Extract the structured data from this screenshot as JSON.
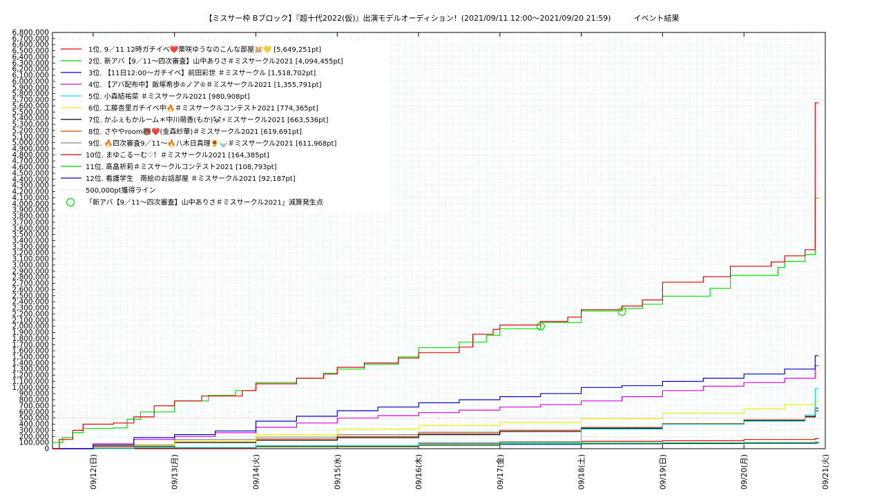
{
  "chart_data": {
    "type": "line",
    "title": "【ミスサー枠 Bブロック】『超十代2022(仮)』出演モデルオーディション！(2021/09/11 12:00～2021/09/20 21:59)　　　イベント結果",
    "xlabel": "",
    "ylabel": "",
    "xlim": [
      "2021-09-11 12:00",
      "2021-09-21 00:00"
    ],
    "ylim": [
      0,
      6800000
    ],
    "ytick_step": 100000,
    "x_ticks": [
      "09/12(日)",
      "09/13(月)",
      "09/14(火)",
      "09/15(水)",
      "09/16(木)",
      "09/17(金)",
      "09/18(土)",
      "09/19(日)",
      "09/20(月)",
      "09/21(火)"
    ],
    "x_tick_dates": [
      "2021-09-12",
      "2021-09-13",
      "2021-09-14",
      "2021-09-15",
      "2021-09-16",
      "2021-09-17",
      "2021-09-18",
      "2021-09-19",
      "2021-09-20",
      "2021-09-21"
    ],
    "grid": true,
    "legend_position": "top-left",
    "series": [
      {
        "name": "1位. 9／11 12時ガチイベ❤️栗咲ゆうなのこんな部屋🐹💛 [5,649,251pt]",
        "color": "#e00000",
        "points": [
          [
            "2021-09-11 12:00",
            0
          ],
          [
            "2021-09-11 14:00",
            150000
          ],
          [
            "2021-09-11 18:00",
            300000
          ],
          [
            "2021-09-11 21:00",
            400000
          ],
          [
            "2021-09-12 06:00",
            420000
          ],
          [
            "2021-09-12 12:00",
            520000
          ],
          [
            "2021-09-12 18:00",
            700000
          ],
          [
            "2021-09-13 00:00",
            780000
          ],
          [
            "2021-09-13 08:00",
            860000
          ],
          [
            "2021-09-13 20:00",
            950000
          ],
          [
            "2021-09-14 00:00",
            1060000
          ],
          [
            "2021-09-14 12:00",
            1150000
          ],
          [
            "2021-09-14 20:00",
            1220000
          ],
          [
            "2021-09-15 00:00",
            1330000
          ],
          [
            "2021-09-15 08:00",
            1400000
          ],
          [
            "2021-09-15 18:00",
            1480000
          ],
          [
            "2021-09-16 00:00",
            1570000
          ],
          [
            "2021-09-16 12:00",
            1660000
          ],
          [
            "2021-09-16 16:00",
            1870000
          ],
          [
            "2021-09-16 22:00",
            1950000
          ],
          [
            "2021-09-17 00:00",
            2020000
          ],
          [
            "2021-09-17 12:00",
            2080000
          ],
          [
            "2021-09-17 20:00",
            2150000
          ],
          [
            "2021-09-18 00:00",
            2270000
          ],
          [
            "2021-09-18 12:00",
            2330000
          ],
          [
            "2021-09-18 18:00",
            2430000
          ],
          [
            "2021-09-19 00:00",
            2720000
          ],
          [
            "2021-09-19 12:00",
            2810000
          ],
          [
            "2021-09-19 20:00",
            2980000
          ],
          [
            "2021-09-20 08:00",
            3050000
          ],
          [
            "2021-09-20 12:00",
            3150000
          ],
          [
            "2021-09-20 18:00",
            3250000
          ],
          [
            "2021-09-20 21:00",
            5649251
          ],
          [
            "2021-09-20 21:59",
            5649251
          ]
        ]
      },
      {
        "name": "2位. 新アバ【9／11～四次審査】山中ありさ＃ミスサークル2021 [4,094,455pt]",
        "color": "#00dd00",
        "points": [
          [
            "2021-09-11 12:00",
            100000
          ],
          [
            "2021-09-11 15:00",
            180000
          ],
          [
            "2021-09-11 18:00",
            260000
          ],
          [
            "2021-09-11 21:00",
            330000
          ],
          [
            "2021-09-12 06:00",
            340000
          ],
          [
            "2021-09-12 10:00",
            480000
          ],
          [
            "2021-09-12 14:00",
            600000
          ],
          [
            "2021-09-13 00:00",
            780000
          ],
          [
            "2021-09-13 10:00",
            870000
          ],
          [
            "2021-09-13 18:00",
            950000
          ],
          [
            "2021-09-14 00:00",
            1080000
          ],
          [
            "2021-09-14 12:00",
            1150000
          ],
          [
            "2021-09-14 20:00",
            1230000
          ],
          [
            "2021-09-15 00:00",
            1300000
          ],
          [
            "2021-09-15 08:00",
            1380000
          ],
          [
            "2021-09-15 18:00",
            1500000
          ],
          [
            "2021-09-16 00:00",
            1650000
          ],
          [
            "2021-09-16 12:00",
            1740000
          ],
          [
            "2021-09-16 20:00",
            1850000
          ],
          [
            "2021-09-17 00:00",
            1960000
          ],
          [
            "2021-09-17 12:00",
            2060000
          ],
          [
            "2021-09-18 00:00",
            2250000
          ],
          [
            "2021-09-18 12:00",
            2290000
          ],
          [
            "2021-09-18 18:00",
            2360000
          ],
          [
            "2021-09-19 00:00",
            2490000
          ],
          [
            "2021-09-19 14:00",
            2620000
          ],
          [
            "2021-09-19 20:00",
            2830000
          ],
          [
            "2021-09-20 10:00",
            2960000
          ],
          [
            "2021-09-20 12:00",
            3060000
          ],
          [
            "2021-09-20 18:00",
            3170000
          ],
          [
            "2021-09-20 21:00",
            4094455
          ],
          [
            "2021-09-20 21:59",
            4094455
          ]
        ]
      },
      {
        "name": "3位. 【11日12:00～ガチイベ】前田彩世 ＃ミスサークル [1,518,702pt]",
        "color": "#0000cc",
        "points": [
          [
            "2021-09-11 12:00",
            0
          ],
          [
            "2021-09-12 00:00",
            60000
          ],
          [
            "2021-09-12 12:00",
            180000
          ],
          [
            "2021-09-13 00:00",
            230000
          ],
          [
            "2021-09-13 12:00",
            290000
          ],
          [
            "2021-09-14 00:00",
            450000
          ],
          [
            "2021-09-14 12:00",
            530000
          ],
          [
            "2021-09-15 00:00",
            620000
          ],
          [
            "2021-09-15 12:00",
            680000
          ],
          [
            "2021-09-16 00:00",
            750000
          ],
          [
            "2021-09-16 12:00",
            800000
          ],
          [
            "2021-09-17 00:00",
            850000
          ],
          [
            "2021-09-17 12:00",
            900000
          ],
          [
            "2021-09-18 00:00",
            1000000
          ],
          [
            "2021-09-18 12:00",
            1030000
          ],
          [
            "2021-09-19 00:00",
            1100000
          ],
          [
            "2021-09-19 12:00",
            1150000
          ],
          [
            "2021-09-20 00:00",
            1220000
          ],
          [
            "2021-09-20 12:00",
            1300000
          ],
          [
            "2021-09-20 21:00",
            1518702
          ],
          [
            "2021-09-20 21:59",
            1518702
          ]
        ]
      },
      {
        "name": "4位. 【アバ配布中】飯塚希歩♔ノア♔＃ミスサークル2021 [1,355,791pt]",
        "color": "#dd00dd",
        "points": [
          [
            "2021-09-11 12:00",
            0
          ],
          [
            "2021-09-12 00:00",
            80000
          ],
          [
            "2021-09-12 12:00",
            150000
          ],
          [
            "2021-09-13 00:00",
            200000
          ],
          [
            "2021-09-13 12:00",
            260000
          ],
          [
            "2021-09-14 00:00",
            350000
          ],
          [
            "2021-09-14 12:00",
            420000
          ],
          [
            "2021-09-15 00:00",
            500000
          ],
          [
            "2021-09-15 12:00",
            540000
          ],
          [
            "2021-09-16 00:00",
            590000
          ],
          [
            "2021-09-16 12:00",
            630000
          ],
          [
            "2021-09-17 00:00",
            680000
          ],
          [
            "2021-09-17 12:00",
            720000
          ],
          [
            "2021-09-18 00:00",
            780000
          ],
          [
            "2021-09-18 12:00",
            850000
          ],
          [
            "2021-09-19 00:00",
            950000
          ],
          [
            "2021-09-19 12:00",
            1020000
          ],
          [
            "2021-09-20 00:00",
            1080000
          ],
          [
            "2021-09-20 12:00",
            1150000
          ],
          [
            "2021-09-20 21:00",
            1355791
          ],
          [
            "2021-09-20 21:59",
            1355791
          ]
        ]
      },
      {
        "name": "5位. 小森結祐菜 ＃ミスサークル2021 [980,908pt]",
        "color": "#00dddd",
        "points": [
          [
            "2021-09-11 12:00",
            0
          ],
          [
            "2021-09-12 12:00",
            20000
          ],
          [
            "2021-09-14 00:00",
            50000
          ],
          [
            "2021-09-16 00:00",
            100000
          ],
          [
            "2021-09-18 00:00",
            320000
          ],
          [
            "2021-09-19 00:00",
            400000
          ],
          [
            "2021-09-20 00:00",
            450000
          ],
          [
            "2021-09-20 18:00",
            550000
          ],
          [
            "2021-09-20 21:00",
            980908
          ],
          [
            "2021-09-20 21:59",
            980908
          ]
        ]
      },
      {
        "name": "6位. 工藤杏里ガチイベ中🔥＃ミスサークルコンテスト2021 [774,365pt]",
        "color": "#eeee00",
        "points": [
          [
            "2021-09-11 12:00",
            0
          ],
          [
            "2021-09-12 00:00",
            50000
          ],
          [
            "2021-09-13 00:00",
            120000
          ],
          [
            "2021-09-14 00:00",
            230000
          ],
          [
            "2021-09-15 00:00",
            320000
          ],
          [
            "2021-09-16 00:00",
            380000
          ],
          [
            "2021-09-17 00:00",
            430000
          ],
          [
            "2021-09-18 00:00",
            490000
          ],
          [
            "2021-09-19 00:00",
            580000
          ],
          [
            "2021-09-20 00:00",
            650000
          ],
          [
            "2021-09-20 12:00",
            720000
          ],
          [
            "2021-09-20 21:00",
            774365
          ],
          [
            "2021-09-20 21:59",
            774365
          ]
        ]
      },
      {
        "name": "7位. かふぇもかルーム＊中川萌香(もか)🐼⚡ミスサークル2021 [663,536pt]",
        "color": "#000000",
        "points": [
          [
            "2021-09-11 12:00",
            0
          ],
          [
            "2021-09-12 00:00",
            40000
          ],
          [
            "2021-09-13 00:00",
            100000
          ],
          [
            "2021-09-14 00:00",
            140000
          ],
          [
            "2021-09-15 00:00",
            180000
          ],
          [
            "2021-09-16 00:00",
            230000
          ],
          [
            "2021-09-17 00:00",
            280000
          ],
          [
            "2021-09-18 00:00",
            330000
          ],
          [
            "2021-09-19 00:00",
            400000
          ],
          [
            "2021-09-20 00:00",
            460000
          ],
          [
            "2021-09-20 18:00",
            520000
          ],
          [
            "2021-09-20 21:00",
            663536
          ],
          [
            "2021-09-20 21:59",
            663536
          ]
        ]
      },
      {
        "name": "8位. さややroom🐻❤️(金森紗華)＃ミスサークル2021 [619,691pt]",
        "color": "#dd4400",
        "points": [
          [
            "2021-09-11 12:00",
            0
          ],
          [
            "2021-09-12 00:00",
            50000
          ],
          [
            "2021-09-13 00:00",
            120000
          ],
          [
            "2021-09-14 00:00",
            160000
          ],
          [
            "2021-09-15 00:00",
            200000
          ],
          [
            "2021-09-16 00:00",
            250000
          ],
          [
            "2021-09-17 00:00",
            300000
          ],
          [
            "2021-09-18 00:00",
            340000
          ],
          [
            "2021-09-19 00:00",
            410000
          ],
          [
            "2021-09-20 00:00",
            470000
          ],
          [
            "2021-09-20 18:00",
            530000
          ],
          [
            "2021-09-20 21:00",
            619691
          ],
          [
            "2021-09-20 21:59",
            619691
          ]
        ]
      },
      {
        "name": "9位. 🔥四次審査9／11～🔥八木日真理🌻🍚＃ミスサークル2021 [611,968pt]",
        "color": "#888888",
        "points": [
          [
            "2021-09-11 12:00",
            0
          ],
          [
            "2021-09-12 00:00",
            60000
          ],
          [
            "2021-09-13 00:00",
            150000
          ],
          [
            "2021-09-14 00:00",
            190000
          ],
          [
            "2021-09-15 00:00",
            230000
          ],
          [
            "2021-09-16 00:00",
            270000
          ],
          [
            "2021-09-17 00:00",
            300000
          ],
          [
            "2021-09-18 00:00",
            350000
          ],
          [
            "2021-09-19 00:00",
            410000
          ],
          [
            "2021-09-20 00:00",
            470000
          ],
          [
            "2021-09-20 18:00",
            520000
          ],
          [
            "2021-09-20 21:00",
            611968
          ],
          [
            "2021-09-20 21:59",
            611968
          ]
        ]
      },
      {
        "name": "10位. まゆこるーむ♡！＃ミスサークル2021 [164,385pt]",
        "color": "#dd0000",
        "points": [
          [
            "2021-09-11 12:00",
            0
          ],
          [
            "2021-09-12 00:00",
            10000
          ],
          [
            "2021-09-14 00:00",
            40000
          ],
          [
            "2021-09-16 00:00",
            80000
          ],
          [
            "2021-09-17 00:00",
            110000
          ],
          [
            "2021-09-18 00:00",
            120000
          ],
          [
            "2021-09-19 00:00",
            130000
          ],
          [
            "2021-09-20 00:00",
            150000
          ],
          [
            "2021-09-20 21:00",
            164385
          ],
          [
            "2021-09-20 21:59",
            164385
          ]
        ]
      },
      {
        "name": "11位. 髙畠祈莉＃ミスサークルコンテスト2021 [108,793pt]",
        "color": "#00cc00",
        "points": [
          [
            "2021-09-11 12:00",
            0
          ],
          [
            "2021-09-12 00:00",
            10000
          ],
          [
            "2021-09-14 00:00",
            30000
          ],
          [
            "2021-09-16 00:00",
            60000
          ],
          [
            "2021-09-17 00:00",
            80000
          ],
          [
            "2021-09-18 00:00",
            90000
          ],
          [
            "2021-09-19 00:00",
            95000
          ],
          [
            "2021-09-20 00:00",
            100000
          ],
          [
            "2021-09-20 21:00",
            108793
          ],
          [
            "2021-09-20 21:59",
            108793
          ]
        ]
      },
      {
        "name": "12位. 看護学生　南絵のお話部屋 ＃ミスサークル2021 [92,187pt]",
        "color": "#0000cc",
        "points": [
          [
            "2021-09-11 12:00",
            0
          ],
          [
            "2021-09-12 00:00",
            10000
          ],
          [
            "2021-09-14 00:00",
            30000
          ],
          [
            "2021-09-16 00:00",
            55000
          ],
          [
            "2021-09-17 00:00",
            70000
          ],
          [
            "2021-09-18 00:00",
            80000
          ],
          [
            "2021-09-19 00:00",
            85000
          ],
          [
            "2021-09-20 00:00",
            88000
          ],
          [
            "2021-09-20 21:00",
            92187
          ],
          [
            "2021-09-20 21:59",
            92187
          ]
        ]
      }
    ],
    "reference_line": {
      "name": "500,000pt獲得ライン",
      "value": 500000,
      "color": "#f4a0a0"
    },
    "markers": {
      "name": "「新アバ【9／11～四次審査】山中ありさ＃ミスサークル2021」減算発生点",
      "color": "#00dd00",
      "points": [
        [
          "2021-09-17 12:00",
          2000000
        ],
        [
          "2021-09-18 12:00",
          2240000
        ]
      ]
    }
  }
}
